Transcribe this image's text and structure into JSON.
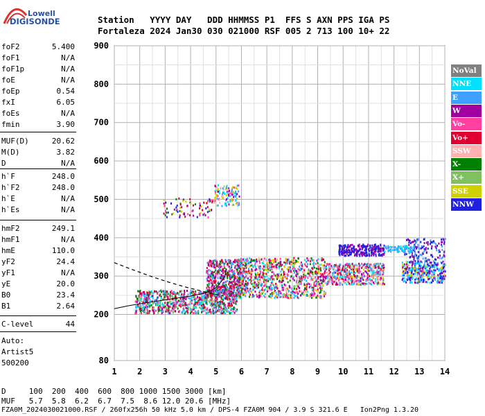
{
  "logo": {
    "line1": "Lowell",
    "line2": "DIGISONDE"
  },
  "header": {
    "row1": "Station   YYYY DAY   DDD HHMMSS P1  FFS S AXN PPS IGA PS",
    "row2": "Fortaleza 2024 Jan30 030 021000 RSF 005 2 713 100 10+ 22"
  },
  "params": [
    {
      "name": "foF2",
      "value": "5.400"
    },
    {
      "name": "foF1",
      "value": "N/A"
    },
    {
      "name": "foF1p",
      "value": "N/A"
    },
    {
      "name": "foE",
      "value": "N/A"
    },
    {
      "name": "foEp",
      "value": "0.54"
    },
    {
      "name": "fxI",
      "value": "6.05"
    },
    {
      "name": "foEs",
      "value": "N/A"
    },
    {
      "name": "fmin",
      "value": "3.90"
    },
    {
      "name": "MUF(D)",
      "value": "20.62"
    },
    {
      "name": "M(D)",
      "value": "3.82"
    },
    {
      "name": "D",
      "value": "N/A"
    },
    {
      "name": "h`F",
      "value": "248.0"
    },
    {
      "name": "h`F2",
      "value": "248.0"
    },
    {
      "name": "h`E",
      "value": "N/A"
    },
    {
      "name": "h`Es",
      "value": "N/A"
    },
    {
      "name": "hmF2",
      "value": "249.1"
    },
    {
      "name": "hmF1",
      "value": "N/A"
    },
    {
      "name": "hmE",
      "value": "110.0"
    },
    {
      "name": "yF2",
      "value": "24.4"
    },
    {
      "name": "yF1",
      "value": "N/A"
    },
    {
      "name": "yE",
      "value": "20.0"
    },
    {
      "name": "B0",
      "value": "23.4"
    },
    {
      "name": "B1",
      "value": "2.64"
    },
    {
      "name": "C-level",
      "value": "44"
    }
  ],
  "auto": {
    "line1": "Auto:",
    "line2": "Artist5",
    "line3": "500200"
  },
  "legend": [
    {
      "label": "NoVal",
      "color": "#808080"
    },
    {
      "label": "NNE",
      "color": "#00e0ff"
    },
    {
      "label": "E",
      "color": "#40a0ff"
    },
    {
      "label": "W",
      "color": "#a000a0"
    },
    {
      "label": "Vo-",
      "color": "#ff40a0"
    },
    {
      "label": "Vo+",
      "color": "#e00030"
    },
    {
      "label": "SSW",
      "color": "#ffb0b0"
    },
    {
      "label": "X-",
      "color": "#008000"
    },
    {
      "label": "X+",
      "color": "#80c060"
    },
    {
      "label": "SSE",
      "color": "#d0d000"
    },
    {
      "label": "NNW",
      "color": "#2020e0"
    }
  ],
  "footer": {
    "row1": "D     100  200  400  600  800 1000 1500 3000 [km]",
    "row2": "MUF   5.7  5.8  6.2  6.7  7.5  8.6 12.0 20.6 [MHz]",
    "row3": "FZA0M_2024030021000.RSF / 260fx256h 50 kHz 5.0 km / DPS-4 FZA0M 904 / 3.9 S 321.6 E   Ion2Png 1.3.20"
  },
  "chart_data": {
    "type": "scatter",
    "x_ticks": [
      1,
      2,
      3,
      4,
      5,
      6,
      7,
      8,
      9,
      10,
      11,
      12,
      13,
      14
    ],
    "y_ticks": [
      80,
      200,
      300,
      400,
      500,
      600,
      700,
      800,
      900
    ],
    "xlim": [
      1,
      14
    ],
    "ylim": [
      80,
      900
    ],
    "grid": true,
    "legend_position": "right",
    "trace_curve": {
      "x": [
        1.0,
        1.5,
        2.0,
        2.5,
        3.0,
        3.5,
        4.0,
        4.5,
        4.8,
        5.0,
        5.2,
        5.35,
        5.4
      ],
      "y": [
        215,
        222,
        228,
        233,
        238,
        243,
        248,
        255,
        262,
        270,
        285,
        300,
        320
      ]
    },
    "profile_dashed": {
      "x": [
        1.0,
        1.5,
        2.0,
        2.5,
        3.0,
        3.5,
        4.0,
        4.5,
        5.0,
        5.3
      ],
      "y": [
        335,
        322,
        310,
        298,
        287,
        277,
        268,
        260,
        252,
        248
      ]
    },
    "echo_clusters": [
      {
        "x": [
          1.8,
          5.8
        ],
        "y": [
          205,
          265
        ],
        "n": 900,
        "colors": [
          "#e00030",
          "#ff40a0",
          "#a000a0",
          "#00e0ff",
          "#40a0ff",
          "#008000",
          "#80c060"
        ]
      },
      {
        "x": [
          4.6,
          6.0
        ],
        "y": [
          250,
          345
        ],
        "n": 500,
        "colors": [
          "#e00030",
          "#ff40a0",
          "#a000a0",
          "#008000",
          "#40a0ff"
        ]
      },
      {
        "x": [
          5.8,
          9.3
        ],
        "y": [
          245,
          350
        ],
        "n": 1000,
        "colors": [
          "#e00030",
          "#ff40a0",
          "#a000a0",
          "#40a0ff",
          "#00e0ff",
          "#008000",
          "#d0d000",
          "#ffb0b0"
        ]
      },
      {
        "x": [
          9.3,
          11.6
        ],
        "y": [
          280,
          335
        ],
        "n": 500,
        "colors": [
          "#ffb0b0",
          "#ff40a0",
          "#d0d000",
          "#a000a0",
          "#40a0ff",
          "#00e0ff",
          "#e00030"
        ]
      },
      {
        "x": [
          9.8,
          11.6
        ],
        "y": [
          355,
          385
        ],
        "n": 250,
        "colors": [
          "#2020e0",
          "#2020e0",
          "#a000a0"
        ]
      },
      {
        "x": [
          12.3,
          14.0
        ],
        "y": [
          285,
          340
        ],
        "n": 350,
        "colors": [
          "#d0d000",
          "#2020e0",
          "#40a0ff",
          "#a000a0",
          "#00e0ff"
        ]
      },
      {
        "x": [
          12.4,
          14.0
        ],
        "y": [
          340,
          400
        ],
        "n": 150,
        "colors": [
          "#2020e0",
          "#a000a0",
          "#40a0ff"
        ]
      },
      {
        "x": [
          11.6,
          12.8
        ],
        "y": [
          365,
          382
        ],
        "n": 80,
        "colors": [
          "#40a0ff",
          "#00e0ff"
        ]
      },
      {
        "x": [
          2.9,
          4.9
        ],
        "y": [
          455,
          505
        ],
        "n": 80,
        "colors": [
          "#e00030",
          "#ff40a0",
          "#a000a0",
          "#008000",
          "#2020e0",
          "#d0d000"
        ]
      },
      {
        "x": [
          4.9,
          5.9
        ],
        "y": [
          485,
          540
        ],
        "n": 120,
        "colors": [
          "#40a0ff",
          "#00e0ff",
          "#ff40a0",
          "#ffb0b0",
          "#d0d000",
          "#a000a0"
        ]
      }
    ]
  }
}
